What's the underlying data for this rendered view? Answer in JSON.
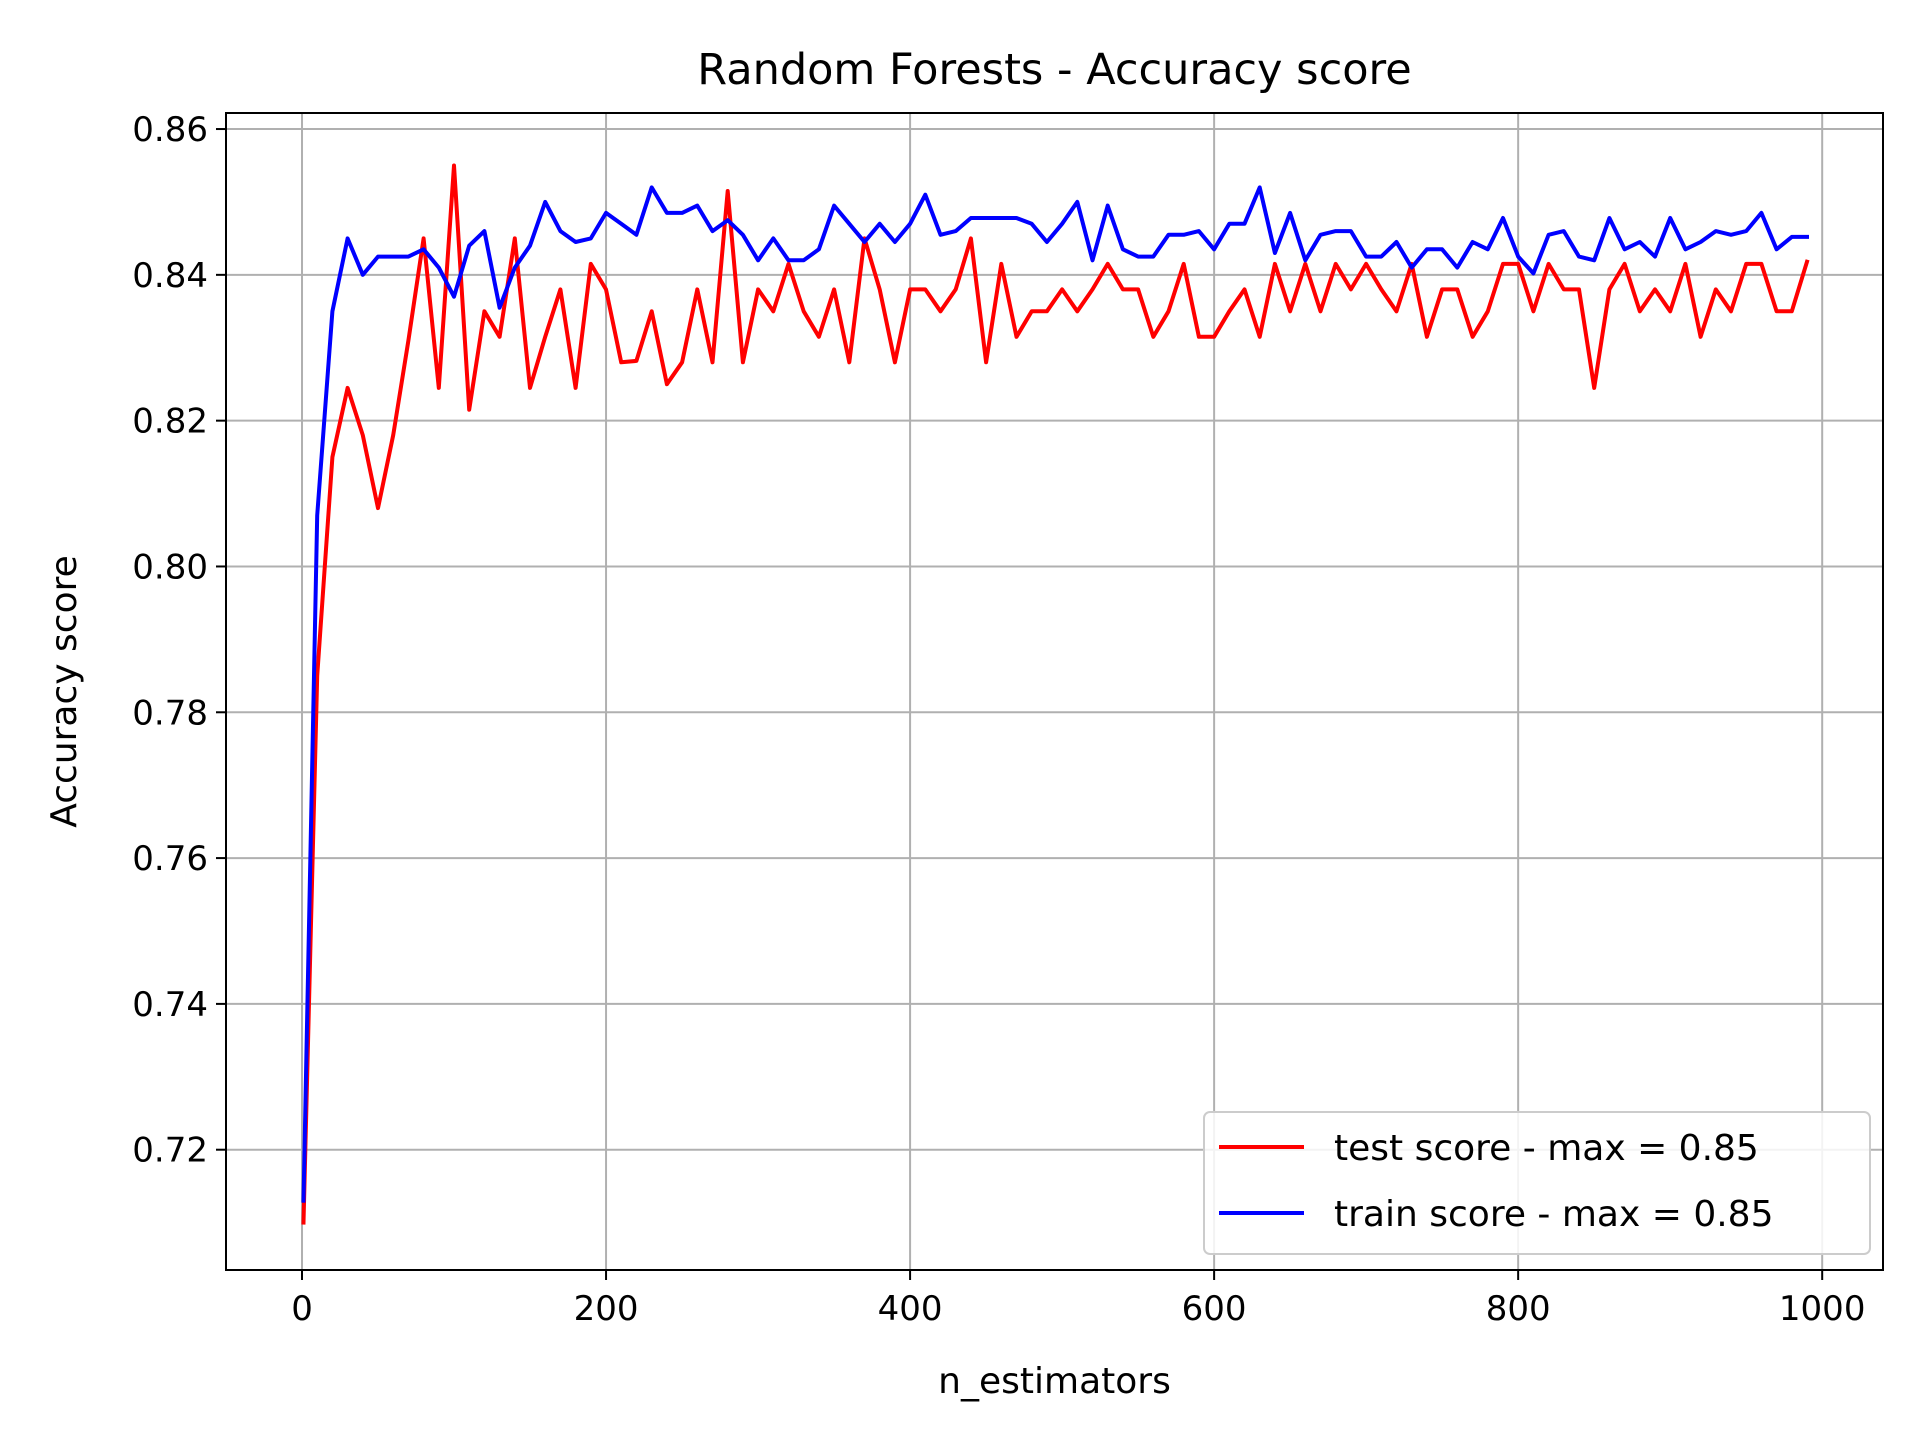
{
  "chart_data": {
    "type": "line",
    "title": "Random Forests - Accuracy score",
    "xlabel": "n_estimators",
    "ylabel": "Accuracy score",
    "xlim": [
      -50,
      1040
    ],
    "ylim": [
      0.7035,
      0.8622
    ],
    "xticks": [
      0,
      200,
      400,
      600,
      800,
      1000
    ],
    "xtick_labels": [
      "0",
      "200",
      "400",
      "600",
      "800",
      "1000"
    ],
    "yticks": [
      0.72,
      0.74,
      0.76,
      0.78,
      0.8,
      0.82,
      0.84,
      0.86
    ],
    "ytick_labels": [
      "0.72",
      "0.74",
      "0.76",
      "0.78",
      "0.80",
      "0.82",
      "0.84",
      "0.86"
    ],
    "grid": true,
    "legend_position": "lower-right",
    "x": [
      1,
      10,
      20,
      30,
      40,
      50,
      60,
      70,
      80,
      90,
      100,
      110,
      120,
      130,
      140,
      150,
      160,
      170,
      180,
      190,
      200,
      210,
      220,
      230,
      240,
      250,
      260,
      270,
      280,
      290,
      300,
      310,
      320,
      330,
      340,
      350,
      360,
      370,
      380,
      390,
      400,
      410,
      420,
      430,
      440,
      450,
      460,
      470,
      480,
      490,
      500,
      510,
      520,
      530,
      540,
      550,
      560,
      570,
      580,
      590,
      600,
      610,
      620,
      630,
      640,
      650,
      660,
      670,
      680,
      690,
      700,
      710,
      720,
      730,
      740,
      750,
      760,
      770,
      780,
      790,
      800,
      810,
      820,
      830,
      840,
      850,
      860,
      870,
      880,
      890,
      900,
      910,
      920,
      930,
      940,
      950,
      960,
      970,
      980,
      990
    ],
    "series": [
      {
        "name": "test score - max = 0.85",
        "color": "#ff0000",
        "values": [
          0.71,
          0.785,
          0.815,
          0.8245,
          0.818,
          0.808,
          0.818,
          0.831,
          0.845,
          0.8245,
          0.855,
          0.8215,
          0.835,
          0.8315,
          0.845,
          0.8245,
          0.8315,
          0.838,
          0.8245,
          0.8415,
          0.838,
          0.828,
          0.8282,
          0.835,
          0.825,
          0.828,
          0.838,
          0.828,
          0.8515,
          0.828,
          0.838,
          0.835,
          0.8415,
          0.835,
          0.8315,
          0.838,
          0.828,
          0.845,
          0.838,
          0.828,
          0.838,
          0.838,
          0.835,
          0.838,
          0.845,
          0.828,
          0.8415,
          0.8315,
          0.835,
          0.835,
          0.838,
          0.835,
          0.838,
          0.8415,
          0.838,
          0.838,
          0.8315,
          0.835,
          0.8415,
          0.8315,
          0.8315,
          0.835,
          0.838,
          0.8315,
          0.8415,
          0.835,
          0.8415,
          0.835,
          0.8415,
          0.838,
          0.8415,
          0.838,
          0.835,
          0.8415,
          0.8315,
          0.838,
          0.838,
          0.8315,
          0.835,
          0.8415,
          0.8415,
          0.835,
          0.8415,
          0.838,
          0.838,
          0.8245,
          0.838,
          0.8415,
          0.835,
          0.838,
          0.835,
          0.8415,
          0.8315,
          0.838,
          0.835,
          0.8415,
          0.8415,
          0.835,
          0.835,
          0.8418
        ]
      },
      {
        "name": "train score - max = 0.85",
        "color": "#0000ff",
        "values": [
          0.713,
          0.807,
          0.835,
          0.845,
          0.84,
          0.8425,
          0.8425,
          0.8425,
          0.8435,
          0.841,
          0.837,
          0.844,
          0.846,
          0.8355,
          0.841,
          0.844,
          0.85,
          0.846,
          0.8445,
          0.845,
          0.8485,
          0.847,
          0.8455,
          0.852,
          0.8485,
          0.8485,
          0.8495,
          0.846,
          0.8475,
          0.8455,
          0.842,
          0.845,
          0.842,
          0.842,
          0.8435,
          0.8495,
          0.847,
          0.8445,
          0.847,
          0.8445,
          0.847,
          0.851,
          0.8455,
          0.846,
          0.8478,
          0.8478,
          0.8478,
          0.8478,
          0.847,
          0.8445,
          0.847,
          0.85,
          0.842,
          0.8495,
          0.8435,
          0.8425,
          0.8425,
          0.8455,
          0.8455,
          0.846,
          0.8435,
          0.847,
          0.847,
          0.852,
          0.843,
          0.8485,
          0.842,
          0.8455,
          0.846,
          0.846,
          0.8425,
          0.8425,
          0.8445,
          0.841,
          0.8435,
          0.8435,
          0.841,
          0.8445,
          0.8435,
          0.8478,
          0.8425,
          0.8402,
          0.8455,
          0.846,
          0.8425,
          0.842,
          0.8478,
          0.8435,
          0.8445,
          0.8425,
          0.8478,
          0.8435,
          0.8445,
          0.846,
          0.8455,
          0.846,
          0.8485,
          0.8435,
          0.8452,
          0.8452
        ]
      }
    ]
  }
}
